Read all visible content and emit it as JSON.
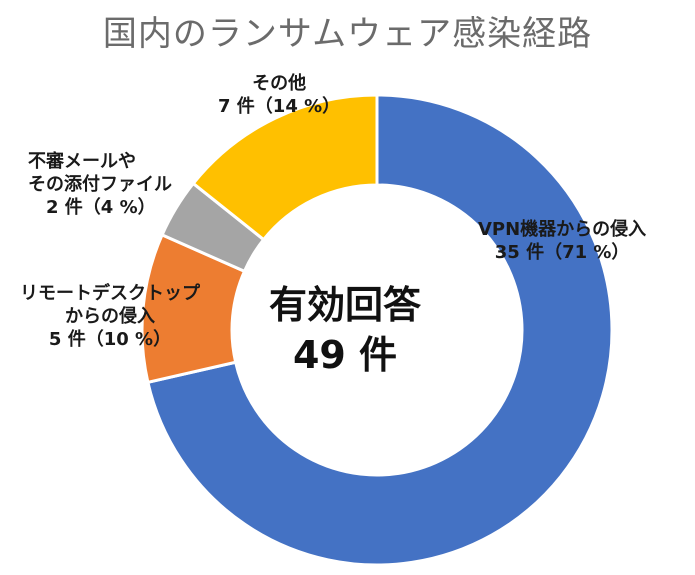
{
  "chart_data": {
    "type": "pie",
    "title": "国内のランサムウェア感染経路",
    "center_label": "有効回答",
    "center_value": "49 件",
    "total": 49,
    "categories": [
      "VPN機器からの侵入",
      "リモートデスクトップからの侵入",
      "不審メールやその添付ファイル",
      "その他"
    ],
    "values": [
      35,
      5,
      2,
      7
    ],
    "slices": [
      {
        "label": "VPN機器からの侵入",
        "value": 35,
        "value_text": "35 件（71 %）",
        "color": "#4472C4"
      },
      {
        "label": "リモートデスクトップからの侵入",
        "label_lines": [
          "リモートデスクトップ",
          "からの侵入"
        ],
        "value": 5,
        "value_text": "5 件（10 %）",
        "color": "#ED7D31"
      },
      {
        "label": "不審メールやその添付ファイル",
        "label_lines": [
          "不審メールや",
          "その添付ファイル"
        ],
        "value": 2,
        "value_text": "2 件（4 %）",
        "color": "#A5A5A5"
      },
      {
        "label": "その他",
        "value": 7,
        "value_text": "7 件（14 %）",
        "color": "#FFC000"
      }
    ]
  }
}
